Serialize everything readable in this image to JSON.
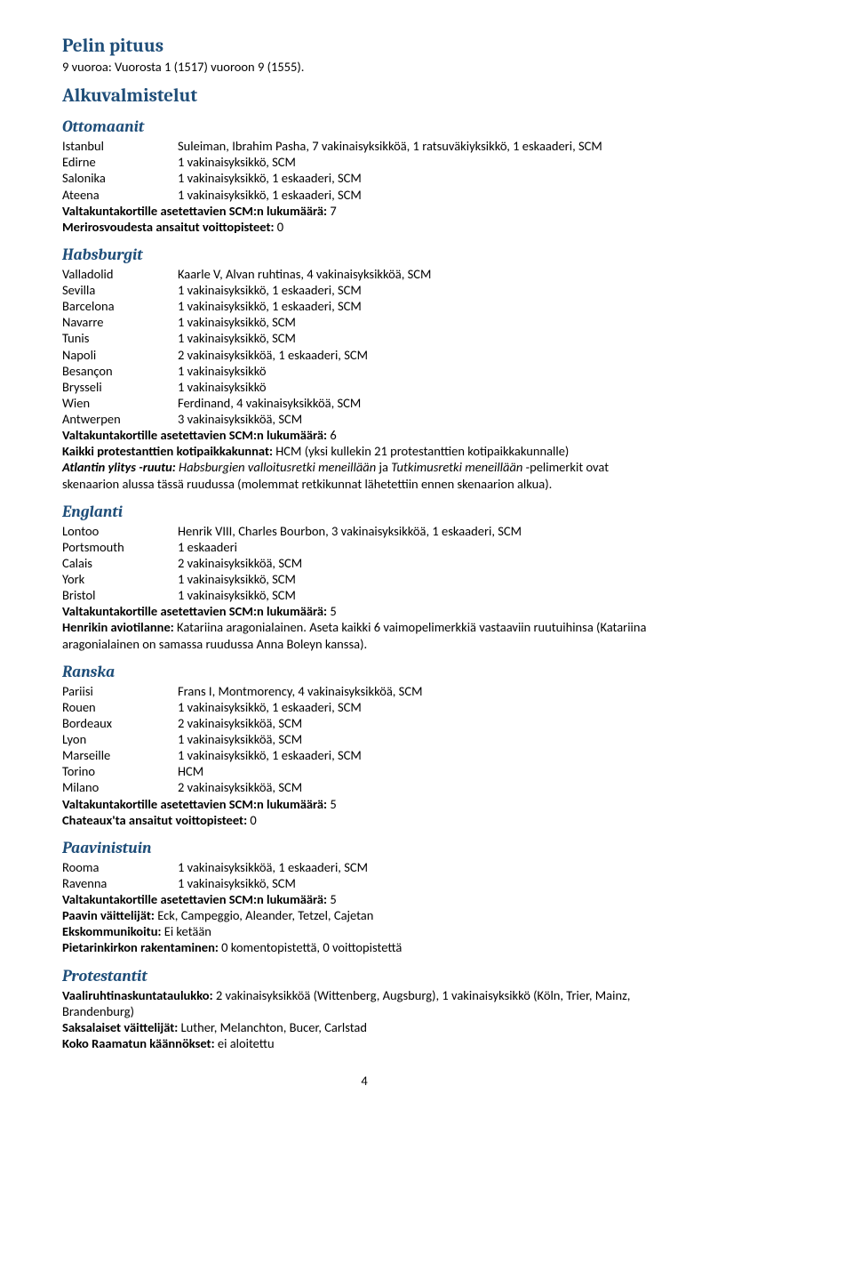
{
  "pageNumber": "4",
  "gameLength": {
    "title": "Pelin pituus",
    "text": "9 vuoroa: Vuorosta 1 (1517) vuoroon 9 (1555)."
  },
  "setupTitle": "Alkuvalmistelut",
  "ottomans": {
    "title": "Ottomaanit",
    "rows": [
      {
        "k": "Istanbul",
        "v": "Suleiman, Ibrahim Pasha, 7 vakinaisyksikköä, 1 ratsuväkiyksikkö, 1 eskaaderi, SCM"
      },
      {
        "k": "Edirne",
        "v": "1 vakinaisyksikkö, SCM"
      },
      {
        "k": "Salonika",
        "v": "1 vakinaisyksikkö, 1 eskaaderi, SCM"
      },
      {
        "k": "Ateena",
        "v": "1 vakinaisyksikkö, 1 eskaaderi, SCM"
      }
    ],
    "cardsLabel": "Valtakuntakortille asetettavien SCM:n lukumäärä:",
    "cardsValue": " 7",
    "piracyLabel": "Merirosvoudesta ansaitut voittopisteet:",
    "piracyValue": " 0"
  },
  "habsburg": {
    "title": "Habsburgit",
    "rows": [
      {
        "k": "Valladolid",
        "v": "Kaarle V, Alvan ruhtinas, 4 vakinaisyksikköä, SCM"
      },
      {
        "k": "Sevilla",
        "v": "1 vakinaisyksikkö, 1 eskaaderi, SCM"
      },
      {
        "k": "Barcelona",
        "v": "1 vakinaisyksikkö, 1 eskaaderi, SCM"
      },
      {
        "k": "Navarre",
        "v": "1 vakinaisyksikkö, SCM"
      },
      {
        "k": "Tunis",
        "v": "1 vakinaisyksikkö, SCM"
      },
      {
        "k": "Napoli",
        "v": "2 vakinaisyksikköä, 1 eskaaderi, SCM"
      },
      {
        "k": "Besançon",
        "v": "1 vakinaisyksikkö"
      },
      {
        "k": "Brysseli",
        "v": "1 vakinaisyksikkö"
      },
      {
        "k": "Wien",
        "v": "Ferdinand, 4 vakinaisyksikköä, SCM"
      },
      {
        "k": "Antwerpen",
        "v": "3 vakinaisyksikköä, SCM"
      }
    ],
    "cardsLabel": "Valtakuntakortille asetettavien SCM:n lukumäärä:",
    "cardsValue": " 6",
    "protestantLabel": "Kaikki protestanttien kotipaikkakunnat:",
    "protestantValue": " HCM (yksi kullekin 21 protestanttien kotipaikkakunnalle)",
    "atlanticLabel": "Atlantin ylitys -ruutu:",
    "atlanticItalic1": " Habsburgien valloitusretki meneillään",
    "atlanticMid": " ja ",
    "atlanticItalic2": "Tutkimusretki meneillään",
    "atlanticRest": " -pelimerkit ovat skenaarion alussa tässä ruudussa (molemmat retkikunnat lähetettiin ennen skenaarion alkua)."
  },
  "england": {
    "title": "Englanti",
    "rows": [
      {
        "k": "Lontoo",
        "v": "Henrik VIII, Charles Bourbon, 3 vakinaisyksikköä, 1 eskaaderi, SCM"
      },
      {
        "k": "Portsmouth",
        "v": "1 eskaaderi"
      },
      {
        "k": "Calais",
        "v": "2 vakinaisyksikköä, SCM"
      },
      {
        "k": "York",
        "v": "1 vakinaisyksikkö, SCM"
      },
      {
        "k": "Bristol",
        "v": "1 vakinaisyksikkö, SCM"
      }
    ],
    "cardsLabel": "Valtakuntakortille asetettavien SCM:n lukumäärä:",
    "cardsValue": " 5",
    "maritalLabel": "Henrikin aviotilanne:",
    "maritalValue": " Katariina aragonialainen. Aseta kaikki 6 vaimopelimerkkiä vastaaviin ruutuihinsa (Katariina aragonialainen on samassa ruudussa Anna Boleyn kanssa)."
  },
  "france": {
    "title": "Ranska",
    "rows": [
      {
        "k": "Pariisi",
        "v": "Frans I, Montmorency, 4 vakinaisyksikköä, SCM"
      },
      {
        "k": "Rouen",
        "v": "1 vakinaisyksikkö, 1 eskaaderi, SCM"
      },
      {
        "k": "Bordeaux",
        "v": "2 vakinaisyksikköä, SCM"
      },
      {
        "k": "Lyon",
        "v": "1 vakinaisyksikköä, SCM"
      },
      {
        "k": "Marseille",
        "v": "1 vakinaisyksikkö, 1 eskaaderi, SCM"
      },
      {
        "k": "Torino",
        "v": "HCM"
      },
      {
        "k": "Milano",
        "v": "2 vakinaisyksikköä, SCM"
      }
    ],
    "cardsLabel": "Valtakuntakortille asetettavien SCM:n lukumäärä:",
    "cardsValue": " 5",
    "chateauxLabel": "Chateaux'ta ansaitut voittopisteet:",
    "chateauxValue": " 0"
  },
  "papacy": {
    "title": "Paavinistuin",
    "rows": [
      {
        "k": "Rooma",
        "v": "1 vakinaisyksikköä, 1 eskaaderi, SCM"
      },
      {
        "k": "Ravenna",
        "v": "1 vakinaisyksikkö, SCM"
      }
    ],
    "cardsLabel": "Valtakuntakortille asetettavien SCM:n lukumäärä:",
    "cardsValue": " 5",
    "debatersLabel": "Paavin väittelijät:",
    "debatersValue": " Eck, Campeggio, Aleander, Tetzel, Cajetan",
    "excommLabel": "Ekskommunikoitu:",
    "excommValue": " Ei ketään",
    "stPetersLabel": "Pietarinkirkon rakentaminen:",
    "stPetersValue": " 0 komentopistettä, 0 voittopistettä"
  },
  "protestant": {
    "title": "Protestantit",
    "electorLabel": "Vaaliruhtinaskuntataulukko:",
    "electorValue": " 2 vakinaisyksikköä (Wittenberg, Augsburg), 1 vakinaisyksikkö (Köln, Trier, Mainz, Brandenburg)",
    "debatersLabel": "Saksalaiset väittelijät:",
    "debatersValue": " Luther, Melanchton, Bucer, Carlstad",
    "bibleLabel": "Koko Raamatun käännökset:",
    "bibleValue": " ei aloitettu"
  }
}
